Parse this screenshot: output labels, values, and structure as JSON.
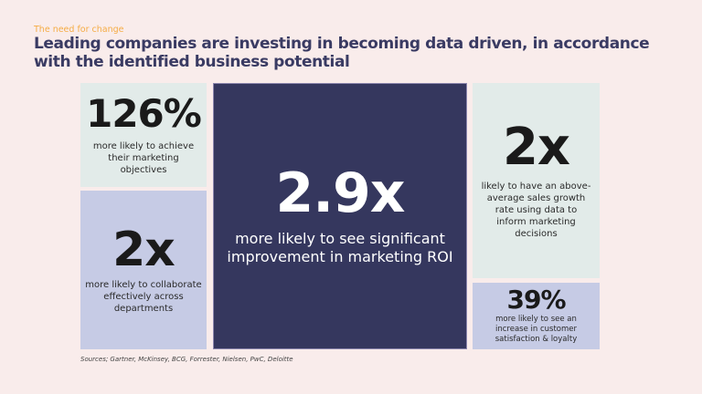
{
  "header": {
    "eyebrow": "The need for change",
    "title": "Leading companies are investing in becoming data driven, in accordance with the identified business potential"
  },
  "stats": [
    {
      "value": "126%",
      "description": "more likely to achieve their marketing objectives",
      "color": "#e2ebe9"
    },
    {
      "value": "2x",
      "description": "more likely to collaborate effectively across departments",
      "color": "#c6cbe5"
    },
    {
      "value": "2.9x",
      "description": "more likely to see significant improvement in marketing ROI",
      "color": "#35375e"
    },
    {
      "value": "2x",
      "description": "likely to have an above-average sales growth rate using data to inform marketing decisions",
      "color": "#e2ebe9"
    },
    {
      "value": "39%",
      "description": "more likely to see an increase in customer satisfaction & loyalty",
      "color": "#c6cbe5"
    }
  ],
  "footer": {
    "sources": "Sources; Gartner, McKinsey, BCG, Forrester, Nielsen, PwC, Deloitte"
  },
  "colors": {
    "background": "#f9eceb",
    "accent": "#f5ac45",
    "title": "#3a3b63"
  }
}
